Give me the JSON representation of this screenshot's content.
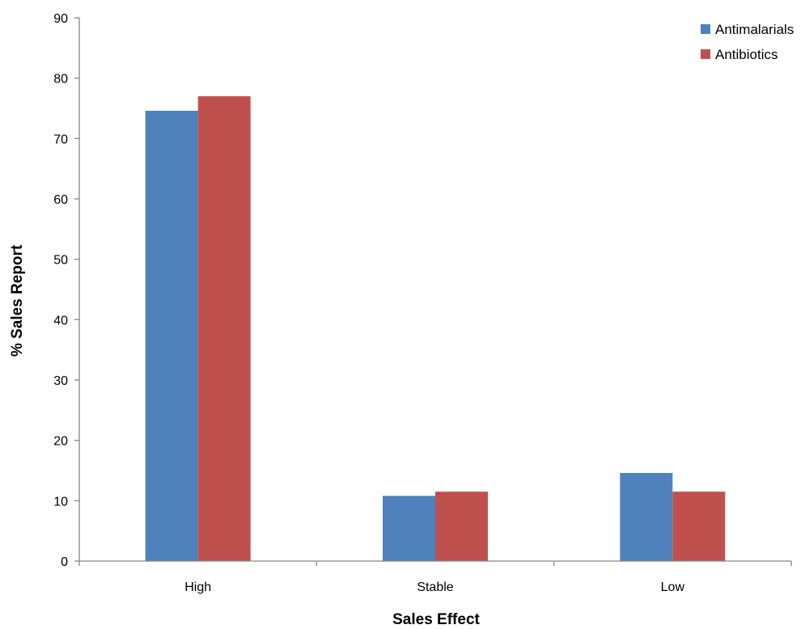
{
  "chart_data": {
    "type": "bar",
    "title": "",
    "xlabel": "Sales Effect",
    "ylabel": "%  Sales Report",
    "categories": [
      "High",
      "Stable",
      "Low"
    ],
    "series": [
      {
        "name": "Antimalarials",
        "color": "#4F81BD",
        "values": [
          74.6,
          10.8,
          14.6
        ]
      },
      {
        "name": "Antibiotics",
        "color": "#C0504D",
        "values": [
          77.0,
          11.5,
          11.5
        ]
      }
    ],
    "ylim": [
      0,
      90
    ],
    "yticks": [
      0,
      10,
      20,
      30,
      40,
      50,
      60,
      70,
      80,
      90
    ],
    "grid": false,
    "legend_position": "top-right"
  }
}
